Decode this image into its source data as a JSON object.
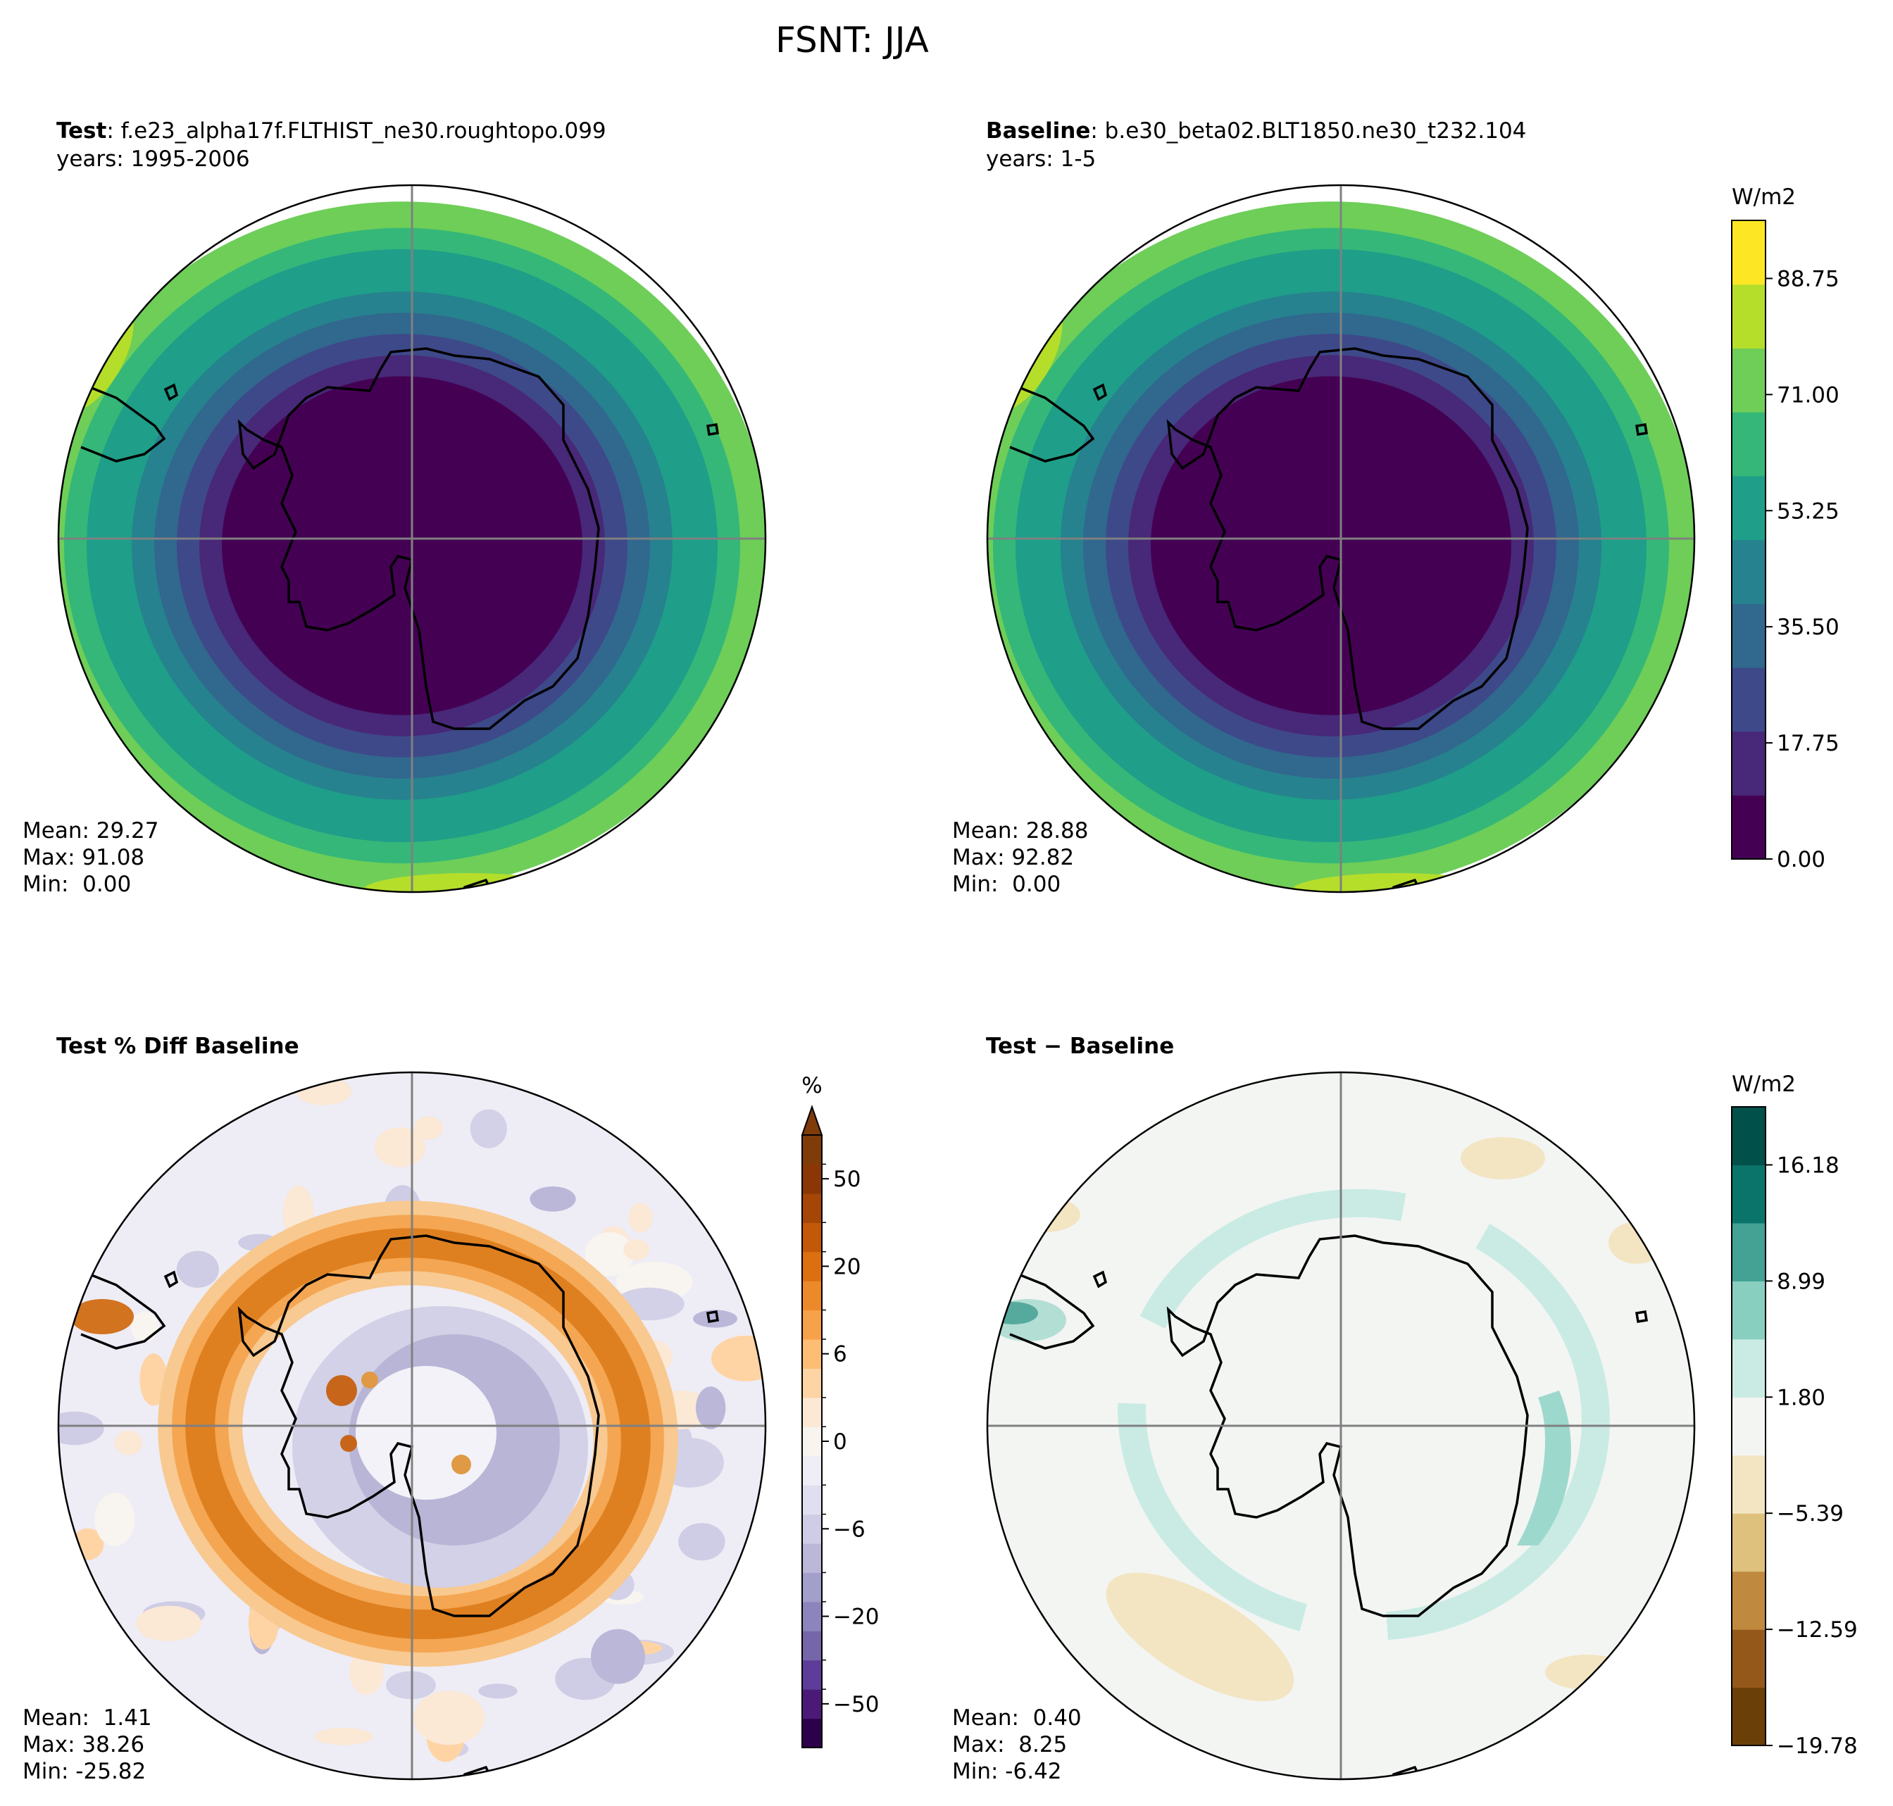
{
  "chart_data": {
    "type": "heatmap",
    "title": "FSNT: JJA",
    "projection": "South polar stereographic",
    "panels": [
      {
        "id": "test",
        "label_bold": "Test",
        "label_rest": ": f.e23_alpha17f.FLTHIST_ne30.roughtopo.099",
        "years": "years: 1995-2006",
        "stats": {
          "mean": "Mean: 29.27",
          "max": "Max: 91.08",
          "min": "Min:  0.00"
        },
        "colorbar": "abs"
      },
      {
        "id": "baseline",
        "label_bold": "Baseline",
        "label_rest": ": b.e30_beta02.BLT1850.ne30_t232.104",
        "years": "years: 1-5",
        "stats": {
          "mean": "Mean: 28.88",
          "max": "Max: 92.82",
          "min": "Min:  0.00"
        },
        "colorbar": "abs"
      },
      {
        "id": "pctdiff",
        "label_bold": "Test % Diff Baseline",
        "label_rest": "",
        "years": "",
        "stats": {
          "mean": "Mean:  1.41",
          "max": "Max: 38.26",
          "min": "Min: -25.82"
        },
        "colorbar": "pct"
      },
      {
        "id": "diff",
        "label_bold": "Test − Baseline",
        "label_rest": "",
        "years": "",
        "stats": {
          "mean": "Mean:  0.40",
          "max": "Max:  8.25",
          "min": "Min: -6.42"
        },
        "colorbar": "diff"
      }
    ],
    "colorbars": {
      "abs": {
        "unit": "W/m2",
        "range": [
          0,
          97.625
        ],
        "levels": 11,
        "tick_labels": [
          "0.00",
          "17.75",
          "35.50",
          "53.25",
          "71.00",
          "88.75"
        ],
        "colors": [
          "#440154",
          "#482878",
          "#3e4989",
          "#31688e",
          "#26828e",
          "#1f9e89",
          "#35b779",
          "#6ece58",
          "#b5de2b",
          "#fde725"
        ]
      },
      "pct": {
        "unit": "%",
        "extend": "max",
        "tick_labels": [
          "−50",
          "−20",
          "−6",
          "0",
          "6",
          "20",
          "50"
        ],
        "colors": [
          "#2d004b",
          "#4b1a78",
          "#5e3c99",
          "#7466a9",
          "#8c84bc",
          "#a39fcb",
          "#bab7d9",
          "#cfcde5",
          "#e0dfef",
          "#efeef6",
          "#f8f4f0",
          "#fbe8d5",
          "#fed4a4",
          "#fdbd74",
          "#f7a24a",
          "#ec8a2a",
          "#dc7010",
          "#c15908",
          "#a54506",
          "#8a3605",
          "#7f3b08"
        ]
      },
      "diff": {
        "unit": "W/m2",
        "tick_labels": [
          "−19.78",
          "−12.59",
          "−5.39",
          "1.80",
          "8.99",
          "16.18"
        ],
        "colors": [
          "#6b4008",
          "#94591a",
          "#bf8a3f",
          "#dfc17e",
          "#f3e5c2",
          "#f3f5f3",
          "#c9ebe4",
          "#88cfc0",
          "#43a293",
          "#0b746a",
          "#01504a"
        ]
      }
    }
  }
}
